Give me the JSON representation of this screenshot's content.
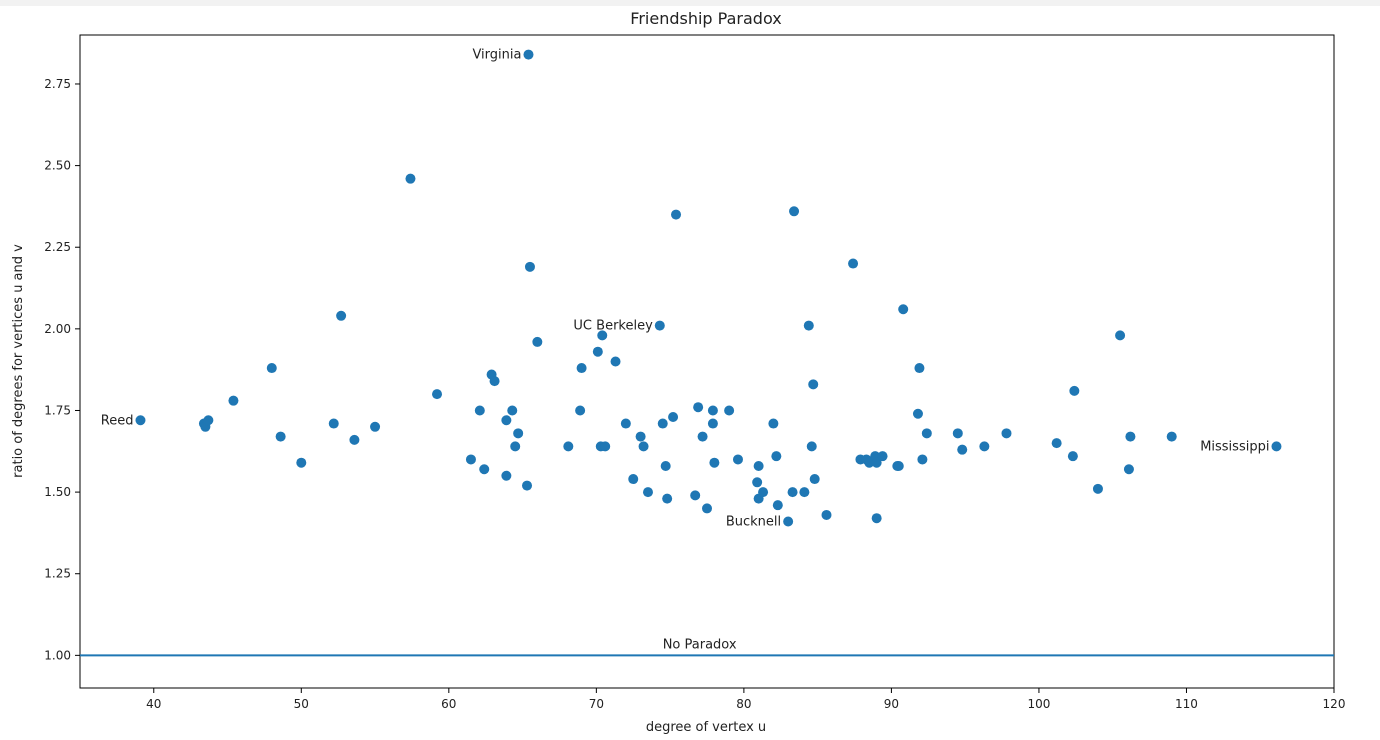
{
  "chart_data": {
    "type": "scatter",
    "title": "Friendship Paradox",
    "xlabel": "degree of vertex u",
    "ylabel": "ratio of degrees for vertices u and v",
    "xlim": [
      35,
      120
    ],
    "ylim": [
      0.9,
      2.9
    ],
    "xticks": [
      40,
      50,
      60,
      70,
      80,
      90,
      100,
      110,
      120
    ],
    "yticks": [
      "1.00",
      "1.25",
      "1.50",
      "1.75",
      "2.00",
      "2.25",
      "2.50",
      "2.75"
    ],
    "grid": false,
    "color": "#1f77b4",
    "reference_line": {
      "y": 1.0,
      "label": "No Paradox",
      "label_x": 77
    },
    "points": [
      [
        39.1,
        1.72
      ],
      [
        43.4,
        1.71
      ],
      [
        43.5,
        1.7
      ],
      [
        43.7,
        1.72
      ],
      [
        45.4,
        1.78
      ],
      [
        48.0,
        1.88
      ],
      [
        48.6,
        1.67
      ],
      [
        50.0,
        1.59
      ],
      [
        52.2,
        1.71
      ],
      [
        52.7,
        2.04
      ],
      [
        53.6,
        1.66
      ],
      [
        55.0,
        1.7
      ],
      [
        57.4,
        2.46
      ],
      [
        59.2,
        1.8
      ],
      [
        61.5,
        1.6
      ],
      [
        62.1,
        1.75
      ],
      [
        62.4,
        1.57
      ],
      [
        62.9,
        1.86
      ],
      [
        63.1,
        1.84
      ],
      [
        63.9,
        1.72
      ],
      [
        63.9,
        1.55
      ],
      [
        64.3,
        1.75
      ],
      [
        64.5,
        1.64
      ],
      [
        64.7,
        1.68
      ],
      [
        65.3,
        1.52
      ],
      [
        65.4,
        2.84
      ],
      [
        65.5,
        2.19
      ],
      [
        66.0,
        1.96
      ],
      [
        68.1,
        1.64
      ],
      [
        68.9,
        1.75
      ],
      [
        69.0,
        1.88
      ],
      [
        70.1,
        1.93
      ],
      [
        70.3,
        1.64
      ],
      [
        70.4,
        1.98
      ],
      [
        70.6,
        1.64
      ],
      [
        71.3,
        1.9
      ],
      [
        72.0,
        1.71
      ],
      [
        72.5,
        1.54
      ],
      [
        73.0,
        1.67
      ],
      [
        73.2,
        1.64
      ],
      [
        73.5,
        1.5
      ],
      [
        74.3,
        2.01
      ],
      [
        74.5,
        1.71
      ],
      [
        74.7,
        1.58
      ],
      [
        74.8,
        1.48
      ],
      [
        75.2,
        1.73
      ],
      [
        75.4,
        2.35
      ],
      [
        76.7,
        1.49
      ],
      [
        76.9,
        1.76
      ],
      [
        77.2,
        1.67
      ],
      [
        77.5,
        1.45
      ],
      [
        77.9,
        1.75
      ],
      [
        77.9,
        1.71
      ],
      [
        78.0,
        1.59
      ],
      [
        79.0,
        1.75
      ],
      [
        79.6,
        1.6
      ],
      [
        80.9,
        1.53
      ],
      [
        81.0,
        1.58
      ],
      [
        81.0,
        1.48
      ],
      [
        81.3,
        1.5
      ],
      [
        82.0,
        1.71
      ],
      [
        82.2,
        1.61
      ],
      [
        82.3,
        1.46
      ],
      [
        83.0,
        1.41
      ],
      [
        83.3,
        1.5
      ],
      [
        83.4,
        2.36
      ],
      [
        84.1,
        1.5
      ],
      [
        84.4,
        2.01
      ],
      [
        84.6,
        1.64
      ],
      [
        84.7,
        1.83
      ],
      [
        84.8,
        1.54
      ],
      [
        85.6,
        1.43
      ],
      [
        87.4,
        2.2
      ],
      [
        87.9,
        1.6
      ],
      [
        88.3,
        1.6
      ],
      [
        88.5,
        1.59
      ],
      [
        88.9,
        1.61
      ],
      [
        89.0,
        1.42
      ],
      [
        89.0,
        1.59
      ],
      [
        89.4,
        1.61
      ],
      [
        90.4,
        1.58
      ],
      [
        90.5,
        1.58
      ],
      [
        90.8,
        2.06
      ],
      [
        91.8,
        1.74
      ],
      [
        91.9,
        1.88
      ],
      [
        92.1,
        1.6
      ],
      [
        92.4,
        1.68
      ],
      [
        94.5,
        1.68
      ],
      [
        94.8,
        1.63
      ],
      [
        96.3,
        1.64
      ],
      [
        97.8,
        1.68
      ],
      [
        101.2,
        1.65
      ],
      [
        102.3,
        1.61
      ],
      [
        102.4,
        1.81
      ],
      [
        104.0,
        1.51
      ],
      [
        105.5,
        1.98
      ],
      [
        106.1,
        1.57
      ],
      [
        106.2,
        1.67
      ],
      [
        109.0,
        1.67
      ],
      [
        116.1,
        1.64
      ]
    ],
    "annotations": [
      {
        "text": "Virginia",
        "x": 65.4,
        "y": 2.84,
        "anchor": "end"
      },
      {
        "text": "UC Berkeley",
        "x": 74.3,
        "y": 2.01,
        "anchor": "end"
      },
      {
        "text": "Reed",
        "x": 39.1,
        "y": 1.72,
        "anchor": "end"
      },
      {
        "text": "Bucknell",
        "x": 83.0,
        "y": 1.41,
        "anchor": "end"
      },
      {
        "text": "Mississippi",
        "x": 116.1,
        "y": 1.64,
        "anchor": "end"
      }
    ]
  }
}
